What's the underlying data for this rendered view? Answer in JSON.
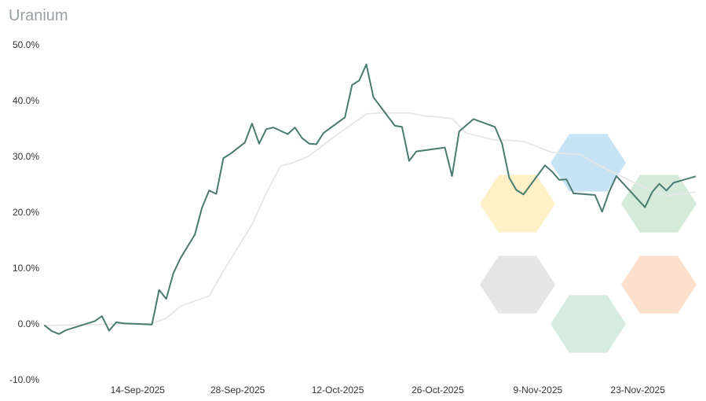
{
  "title": "Uranium",
  "colors": {
    "main_line": "#4a7a70",
    "shadow_line": "#e6e6e6",
    "hex_yellow": "#fff0c8",
    "hex_blue": "#c6e4f5",
    "hex_green": "#d3ebd8",
    "hex_gray": "#e6e6e6",
    "hex_green2": "#d6ece1",
    "hex_orange": "#fde0cc"
  },
  "chart_data": {
    "type": "line",
    "title": "Uranium",
    "xlabel": "",
    "ylabel": "",
    "ylim": [
      -10,
      50
    ],
    "y_ticks": [
      50,
      40,
      30,
      20,
      10,
      0,
      -10
    ],
    "y_tick_labels": [
      "50.0%",
      "40.0%",
      "30.0%",
      "20.0%",
      "10.0%",
      "0.0%",
      "-10.0%"
    ],
    "x_range": [
      "2025-09-01",
      "2025-12-01"
    ],
    "x_ticks": [
      "2025-09-14",
      "2025-09-28",
      "2025-10-12",
      "2025-10-26",
      "2025-11-09",
      "2025-11-23"
    ],
    "x_tick_labels": [
      "14-Sep-2025",
      "28-Sep-2025",
      "12-Oct-2025",
      "26-Oct-2025",
      "9-Nov-2025",
      "23-Nov-2025"
    ],
    "grid": false,
    "legend": "none",
    "series": [
      {
        "x": [
          "2025-09-01",
          "2025-09-02",
          "2025-09-03",
          "2025-09-04",
          "2025-09-08",
          "2025-09-09",
          "2025-09-10",
          "2025-09-11",
          "2025-09-12",
          "2025-09-16",
          "2025-09-17",
          "2025-09-18",
          "2025-09-19",
          "2025-09-20",
          "2025-09-22",
          "2025-09-23",
          "2025-09-24",
          "2025-09-25",
          "2025-09-26",
          "2025-09-27",
          "2025-09-29",
          "2025-09-30",
          "2025-10-01",
          "2025-10-02",
          "2025-10-03",
          "2025-10-05",
          "2025-10-06",
          "2025-10-07",
          "2025-10-08",
          "2025-10-09",
          "2025-10-10",
          "2025-10-13",
          "2025-10-14",
          "2025-10-15",
          "2025-10-16",
          "2025-10-17",
          "2025-10-20",
          "2025-10-21",
          "2025-10-22",
          "2025-10-23",
          "2025-10-27",
          "2025-10-28",
          "2025-10-29",
          "2025-10-31",
          "2025-11-03",
          "2025-11-04",
          "2025-11-05",
          "2025-11-06",
          "2025-11-07",
          "2025-11-10",
          "2025-11-11",
          "2025-11-12",
          "2025-11-13",
          "2025-11-14",
          "2025-11-17",
          "2025-11-18",
          "2025-11-19",
          "2025-11-20",
          "2025-11-24",
          "2025-11-25",
          "2025-11-26",
          "2025-11-27",
          "2025-11-28",
          "2025-12-01"
        ],
        "values": [
          -0.3,
          -1.3,
          -1.8,
          -1.1,
          0.5,
          1.4,
          -1.2,
          0.3,
          0.1,
          -0.1,
          6.1,
          4.5,
          9.1,
          11.8,
          16.0,
          20.8,
          23.9,
          23.3,
          29.7,
          30.5,
          32.5,
          35.9,
          32.3,
          34.9,
          35.2,
          34.0,
          35.2,
          33.3,
          32.3,
          32.2,
          34.2,
          37.0,
          42.8,
          43.6,
          46.5,
          40.6,
          35.5,
          35.3,
          29.2,
          30.9,
          31.6,
          26.5,
          34.5,
          36.7,
          35.3,
          32.3,
          26.2,
          24.0,
          23.2,
          28.4,
          27.3,
          25.8,
          25.9,
          23.4,
          23.1,
          20.1,
          23.7,
          26.5,
          20.9,
          23.6,
          25.1,
          23.9,
          25.3,
          26.4
        ]
      },
      {
        "x": [
          "2025-09-01",
          "2025-09-16",
          "2025-09-18",
          "2025-09-20",
          "2025-09-24",
          "2025-09-26",
          "2025-09-30",
          "2025-10-02",
          "2025-10-04",
          "2025-10-06",
          "2025-10-08",
          "2025-10-12",
          "2025-10-16",
          "2025-10-18",
          "2025-10-22",
          "2025-10-24",
          "2025-10-28",
          "2025-10-30",
          "2025-11-03",
          "2025-11-05",
          "2025-11-07",
          "2025-11-11",
          "2025-11-13",
          "2025-11-15",
          "2025-11-17",
          "2025-11-19",
          "2025-11-23",
          "2025-11-27",
          "2025-12-01"
        ],
        "values": [
          -0.3,
          0.1,
          1.0,
          3.2,
          5.0,
          9.5,
          17.8,
          23.5,
          28.3,
          29.0,
          30.1,
          34.0,
          37.6,
          37.8,
          37.8,
          37.3,
          36.8,
          34.2,
          32.9,
          32.9,
          32.7,
          30.7,
          30.5,
          30.3,
          28.8,
          27.5,
          25.0,
          23.0,
          23.6
        ]
      }
    ]
  }
}
